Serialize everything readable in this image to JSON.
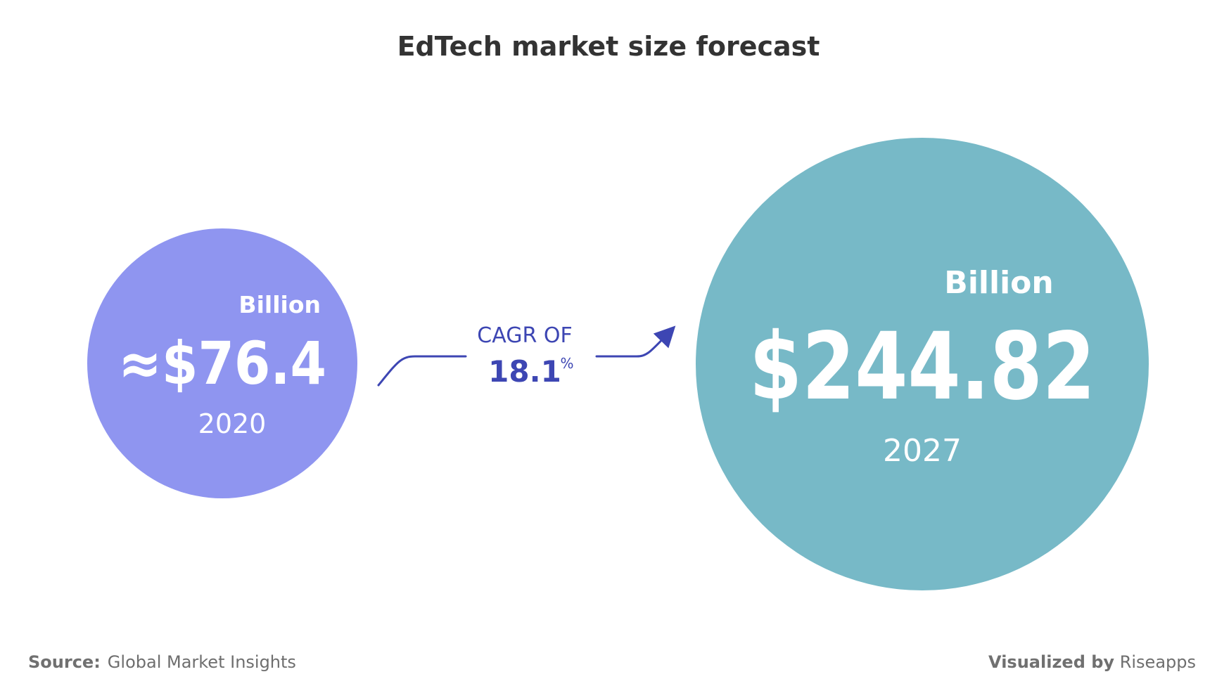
{
  "title": "EdTech market size forecast",
  "colors": {
    "circle_2020": "#8f95f0",
    "circle_2027": "#77b9c7",
    "cagr": "#3d46b3",
    "title": "#333333",
    "circle_text": "#ffffff"
  },
  "chart_data": {
    "type": "bubble",
    "title": "EdTech market size forecast",
    "unit": "Billion",
    "points": [
      {
        "year": "2020",
        "value_label": "≈$76.4",
        "value": 76.4,
        "unit_label": "Billion"
      },
      {
        "year": "2027",
        "value_label": "$244.82",
        "value": 244.82,
        "unit_label": "Billion"
      }
    ],
    "cagr": {
      "label": "CAGR OF",
      "value": "18.1",
      "unit": "%"
    }
  },
  "footer": {
    "source_label": "Source:",
    "source_value": "Global Market Insights",
    "visualized_label": "Visualized by",
    "visualized_value": "Riseapps"
  }
}
